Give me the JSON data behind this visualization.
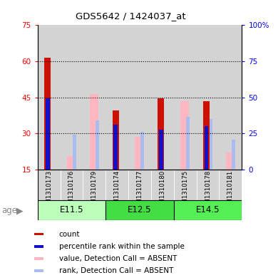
{
  "title": "GDS5642 / 1424037_at",
  "samples": [
    "GSM1310173",
    "GSM1310176",
    "GSM1310179",
    "GSM1310174",
    "GSM1310177",
    "GSM1310180",
    "GSM1310175",
    "GSM1310178",
    "GSM1310181"
  ],
  "age_groups": [
    {
      "label": "E11.5",
      "start": 0,
      "end": 3,
      "color_light": "#CCFFCC",
      "color_dark": "#55DD55"
    },
    {
      "label": "E12.5",
      "start": 3,
      "end": 6,
      "color_light": "#55DD55",
      "color_dark": "#55DD55"
    },
    {
      "label": "E14.5",
      "start": 6,
      "end": 9,
      "color_light": "#55EE55",
      "color_dark": "#55DD55"
    }
  ],
  "count_values": [
    61.5,
    0,
    0,
    39.5,
    0,
    44.5,
    0,
    43.5,
    0
  ],
  "percentile_values": [
    44.5,
    0,
    0,
    33.5,
    0,
    31.5,
    0,
    33.0,
    0
  ],
  "absent_value_values": [
    0,
    20.5,
    46.5,
    0,
    28.5,
    0,
    43.5,
    0,
    22.0
  ],
  "absent_rank_values": [
    0,
    29.5,
    35.5,
    0,
    30.5,
    0,
    37.0,
    36.0,
    27.5
  ],
  "ylim_left": [
    15,
    75
  ],
  "ylim_right": [
    0,
    100
  ],
  "yticks_left": [
    15,
    30,
    45,
    60,
    75
  ],
  "yticks_right": [
    0,
    25,
    50,
    75,
    100
  ],
  "ytick_labels_left": [
    "15",
    "30",
    "45",
    "60",
    "75"
  ],
  "ytick_labels_right": [
    "0",
    "25",
    "50",
    "75",
    "100%"
  ],
  "color_count": "#CC1100",
  "color_percentile": "#1111CC",
  "color_absent_value": "#FFB6C1",
  "color_absent_rank": "#AABBEE",
  "background_sample": "#D3D3D3",
  "legend_items": [
    {
      "color": "#CC1100",
      "label": "count"
    },
    {
      "color": "#1111CC",
      "label": "percentile rank within the sample"
    },
    {
      "color": "#FFB6C1",
      "label": "value, Detection Call = ABSENT"
    },
    {
      "color": "#AABBEE",
      "label": "rank, Detection Call = ABSENT"
    }
  ]
}
